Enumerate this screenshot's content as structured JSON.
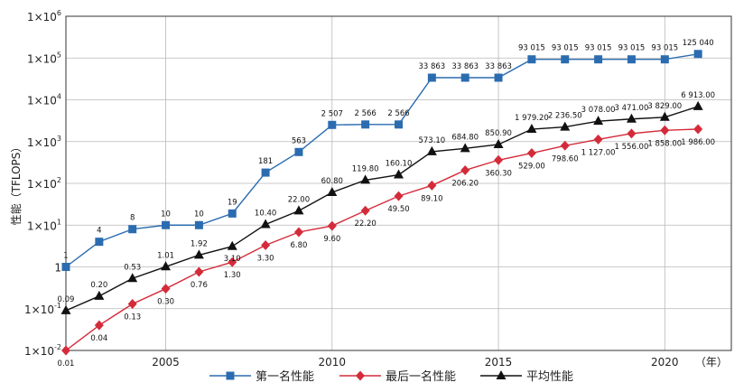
{
  "chart_data": {
    "type": "line",
    "ylabel": "性能（TFLOPS）",
    "xunit": "（年）",
    "y_scale": "log",
    "ylim": [
      0.01,
      1000000
    ],
    "xlim": [
      2002,
      2022
    ],
    "x_ticks": [
      2005,
      2010,
      2015,
      2020
    ],
    "x_tick_labels": [
      "2005",
      "2010",
      "2015",
      "2020"
    ],
    "y_ticks": [
      0.01,
      0.1,
      1,
      10,
      100,
      1000,
      10000,
      100000,
      1000000
    ],
    "y_tick_labels": [
      {
        "base": "1×10",
        "exp": "-2"
      },
      {
        "base": "1×10",
        "exp": "-1"
      },
      {
        "base": "1",
        "exp": ""
      },
      {
        "base": "1×10",
        "exp": "1"
      },
      {
        "base": "1×10",
        "exp": "2"
      },
      {
        "base": "1×10",
        "exp": "3"
      },
      {
        "base": "1×10",
        "exp": "4"
      },
      {
        "base": "1×10",
        "exp": "5"
      },
      {
        "base": "1×10",
        "exp": "6"
      }
    ],
    "grid": true,
    "legend_position": "bottom",
    "x": [
      2002,
      2003,
      2004,
      2005,
      2006,
      2007,
      2008,
      2009,
      2010,
      2011,
      2012,
      2013,
      2014,
      2015,
      2016,
      2017,
      2018,
      2019,
      2020,
      2021
    ],
    "series": [
      {
        "name": "第一名性能",
        "color": "#2b6cb0",
        "marker": "square",
        "values": [
          1,
          4,
          8,
          10,
          10,
          19,
          181,
          563,
          2507,
          2566,
          2566,
          33863,
          33863,
          33863,
          93015,
          93015,
          93015,
          93015,
          93015,
          125040
        ],
        "labels": [
          "1",
          "4",
          "8",
          "10",
          "10",
          "19",
          "181",
          "563",
          "2 507",
          "2 566",
          "2 566",
          "33 863",
          "33 863",
          "33 863",
          "93 015",
          "93 015",
          "93 015",
          "93 015",
          "93 015",
          "125 040"
        ]
      },
      {
        "name": "最后一名性能",
        "color": "#d42b3a",
        "marker": "diamond",
        "values": [
          0.01,
          0.04,
          0.13,
          0.3,
          0.76,
          1.3,
          3.3,
          6.8,
          9.6,
          22.2,
          49.5,
          89.1,
          206.2,
          360.3,
          529,
          798.6,
          1127,
          1556,
          1858,
          1986
        ],
        "labels": [
          "0.01",
          "0.04",
          "0.13",
          "0.30",
          "0.76",
          "1.30",
          "3.30",
          "6.80",
          "9.60",
          "22.20",
          "49.50",
          "89.10",
          "206.20",
          "360.30",
          "529.00",
          "798.60",
          "1 127.00",
          "1 556.00",
          "1 858.00",
          "1 986.00"
        ]
      },
      {
        "name": "平均性能",
        "color": "#111111",
        "marker": "triangle",
        "values": [
          0.09,
          0.2,
          0.53,
          1.01,
          1.92,
          3.1,
          10.4,
          22,
          60.8,
          119.8,
          160.1,
          573.1,
          684.8,
          850.9,
          1979.2,
          2236.5,
          3078,
          3471,
          3829,
          6913
        ],
        "labels": [
          "0.09",
          "0.20",
          "0.53",
          "1.01",
          "1.92",
          "3.10",
          "10.40",
          "22.00",
          "60.80",
          "119.80",
          "160.10",
          "573.10",
          "684.80",
          "850.90",
          "1 979.20",
          "2 236.50",
          "3 078.00",
          "3 471.00",
          "3 829.00",
          "6 913.00"
        ]
      }
    ]
  }
}
